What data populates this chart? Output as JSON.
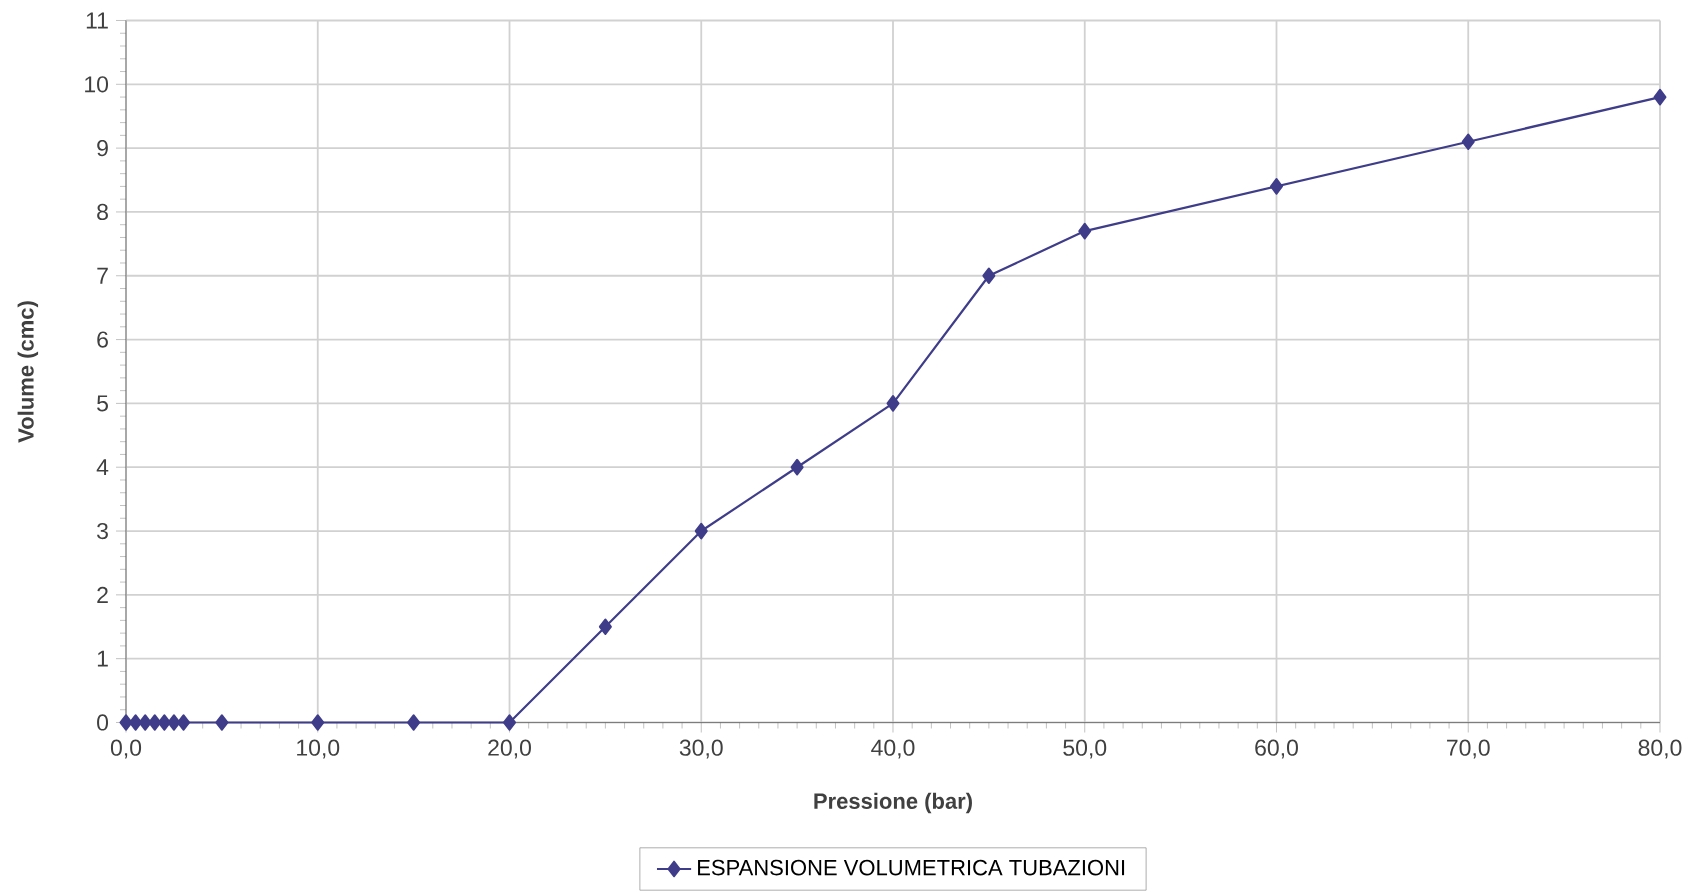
{
  "chart_data": {
    "type": "line",
    "xlabel": "Pressione (bar)",
    "ylabel": "Volume (cmc)",
    "x": [
      0,
      0.5,
      1,
      1.5,
      2,
      2.5,
      3,
      5,
      10,
      15,
      20,
      25,
      30,
      35,
      40,
      45,
      50,
      60,
      70,
      80
    ],
    "series": [
      {
        "name": "ESPANSIONE VOLUMETRICA TUBAZIONI",
        "color": "#3f3d8a",
        "values": [
          0,
          0,
          0,
          0,
          0,
          0,
          0,
          0,
          0,
          0,
          0,
          1.5,
          3,
          4,
          5,
          7,
          7.7,
          8.4,
          9.1,
          9.8
        ]
      }
    ],
    "xlim": [
      0,
      80
    ],
    "ylim": [
      0,
      11
    ],
    "xticks": [
      {
        "value": 0,
        "label": "0,0"
      },
      {
        "value": 10,
        "label": "10,0"
      },
      {
        "value": 20,
        "label": "20,0"
      },
      {
        "value": 30,
        "label": "30,0"
      },
      {
        "value": 40,
        "label": "40,0"
      },
      {
        "value": 50,
        "label": "50,0"
      },
      {
        "value": 60,
        "label": "60,0"
      },
      {
        "value": 70,
        "label": "70,0"
      },
      {
        "value": 80,
        "label": "80,0"
      }
    ],
    "yticks": [
      0,
      1,
      2,
      3,
      4,
      5,
      6,
      7,
      8,
      9,
      10,
      11
    ],
    "grid": true,
    "legend": "bottom",
    "marker": "diamond",
    "line_style": "solid"
  }
}
